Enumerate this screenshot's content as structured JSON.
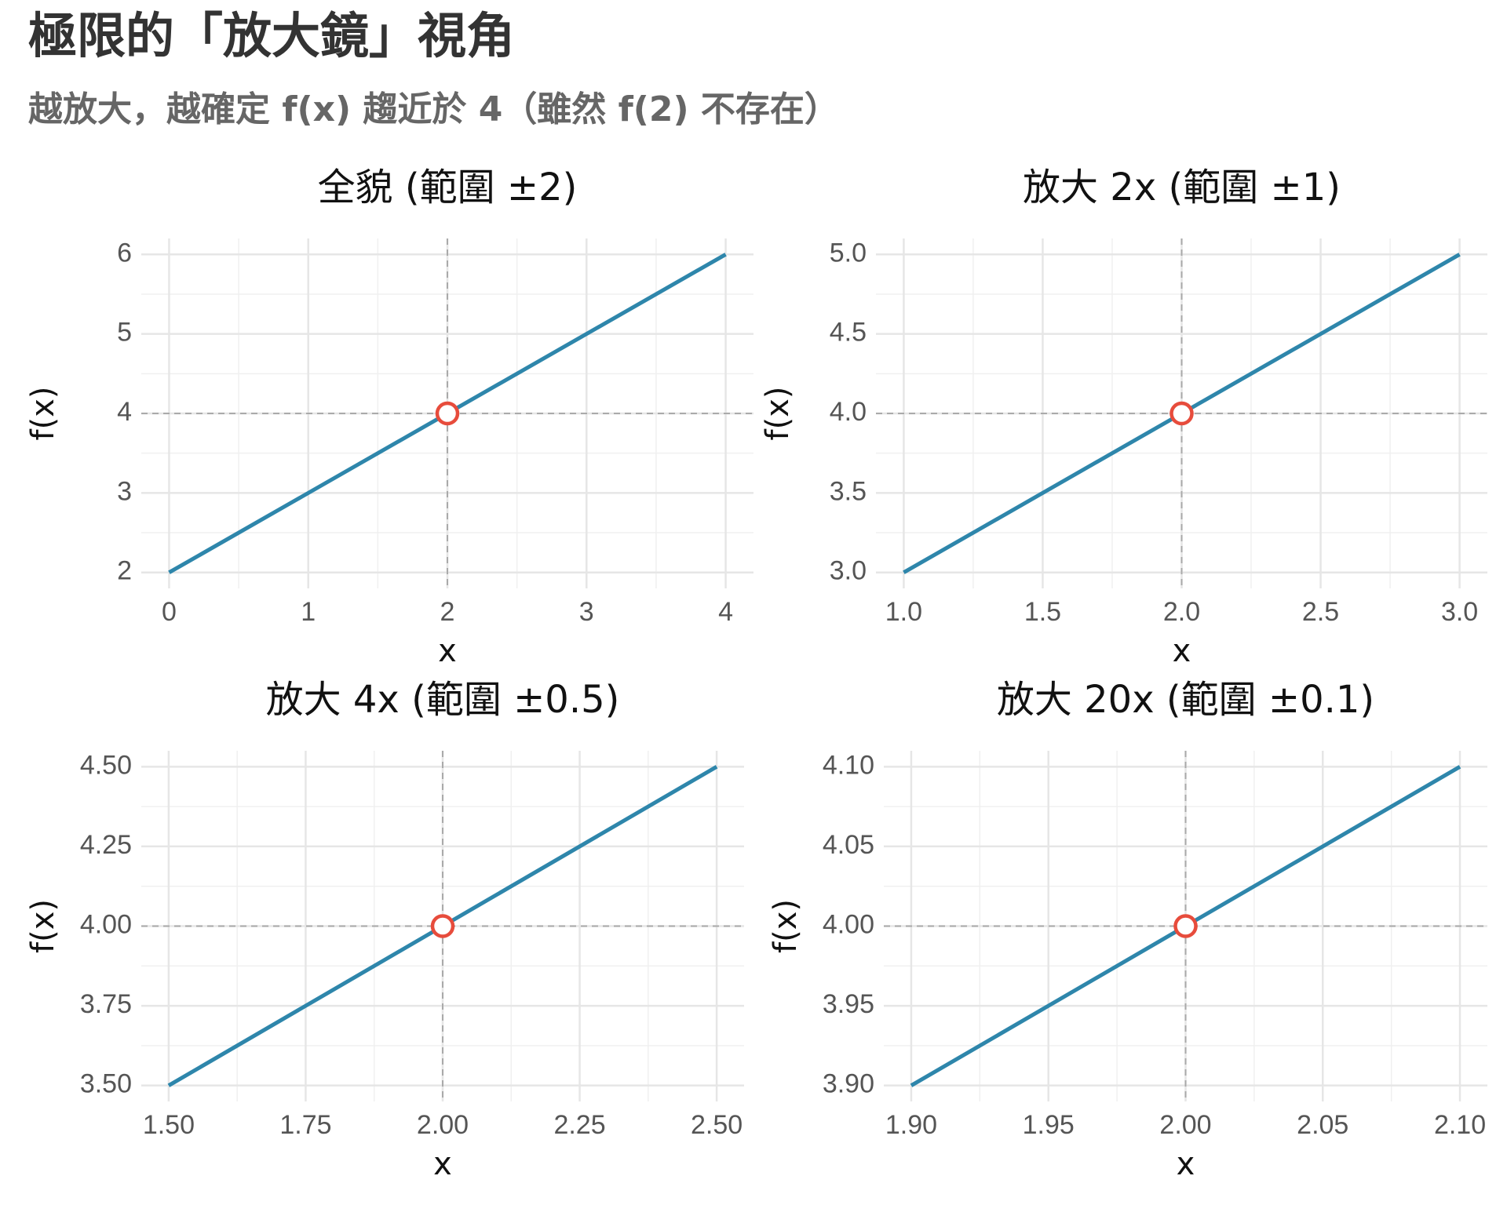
{
  "title": "極限的「放大鏡」視角",
  "subtitle": "越放大，越確定 f(x) 趨近於 4（雖然 f(2) 不存在）",
  "chart_data": [
    {
      "type": "line",
      "title": "全貌 (範圍 ±2)",
      "x_label": "x",
      "y_label": "f(x)",
      "x": [
        0,
        4
      ],
      "values": [
        2,
        6
      ],
      "color": "#2e86ab",
      "hole_x": 2,
      "hole_y": 4,
      "hole_color": "#e74c3c",
      "xlim": [
        -0.2,
        4.2
      ],
      "ylim": [
        1.8,
        6.2
      ],
      "xticks": [
        0,
        1,
        2,
        3,
        4
      ],
      "yticks": [
        2,
        3,
        4,
        5,
        6
      ],
      "grid": true
    },
    {
      "type": "line",
      "title": "放大 2x (範圍 ±1)",
      "x_label": "x",
      "y_label": "f(x)",
      "x": [
        1,
        3
      ],
      "values": [
        3,
        5
      ],
      "color": "#2e86ab",
      "hole_x": 2,
      "hole_y": 4,
      "hole_color": "#e74c3c",
      "xlim": [
        0.9,
        3.1
      ],
      "ylim": [
        2.9,
        5.1
      ],
      "xticks": [
        {
          "value": 1,
          "label": "1.0"
        },
        1.5,
        {
          "value": 2,
          "label": "2.0"
        },
        2.5,
        {
          "value": 3,
          "label": "3.0"
        }
      ],
      "yticks": [
        {
          "value": 3,
          "label": "3.0"
        },
        3.5,
        {
          "value": 4,
          "label": "4.0"
        },
        4.5,
        {
          "value": 5,
          "label": "5.0"
        }
      ],
      "grid": true
    },
    {
      "type": "line",
      "title": "放大 4x (範圍 ±0.5)",
      "x_label": "x",
      "y_label": "f(x)",
      "x": [
        1.5,
        2.5
      ],
      "values": [
        3.5,
        4.5
      ],
      "color": "#2e86ab",
      "hole_x": 2,
      "hole_y": 4,
      "hole_color": "#e74c3c",
      "xlim": [
        1.45,
        2.55
      ],
      "ylim": [
        3.45,
        4.55
      ],
      "xticks": [
        {
          "value": 1.5,
          "label": "1.50"
        },
        1.75,
        {
          "value": 2,
          "label": "2.00"
        },
        2.25,
        {
          "value": 2.5,
          "label": "2.50"
        }
      ],
      "yticks": [
        {
          "value": 3.5,
          "label": "3.50"
        },
        3.75,
        {
          "value": 4,
          "label": "4.00"
        },
        4.25,
        {
          "value": 4.5,
          "label": "4.50"
        }
      ],
      "grid": true
    },
    {
      "type": "line",
      "title": "放大 20x (範圍 ±0.1)",
      "x_label": "x",
      "y_label": "f(x)",
      "x": [
        1.9,
        2.1
      ],
      "values": [
        3.9,
        4.1
      ],
      "color": "#2e86ab",
      "hole_x": 2,
      "hole_y": 4,
      "hole_color": "#e74c3c",
      "xlim": [
        1.89,
        2.11
      ],
      "ylim": [
        3.89,
        4.11
      ],
      "xticks": [
        {
          "value": 1.9,
          "label": "1.90"
        },
        1.95,
        {
          "value": 2,
          "label": "2.00"
        },
        2.05,
        {
          "value": 2.1,
          "label": "2.10"
        }
      ],
      "yticks": [
        {
          "value": 3.9,
          "label": "3.90"
        },
        3.95,
        {
          "value": 4,
          "label": "4.00"
        },
        4.05,
        {
          "value": 4.1,
          "label": "4.10"
        }
      ],
      "grid": true
    }
  ]
}
